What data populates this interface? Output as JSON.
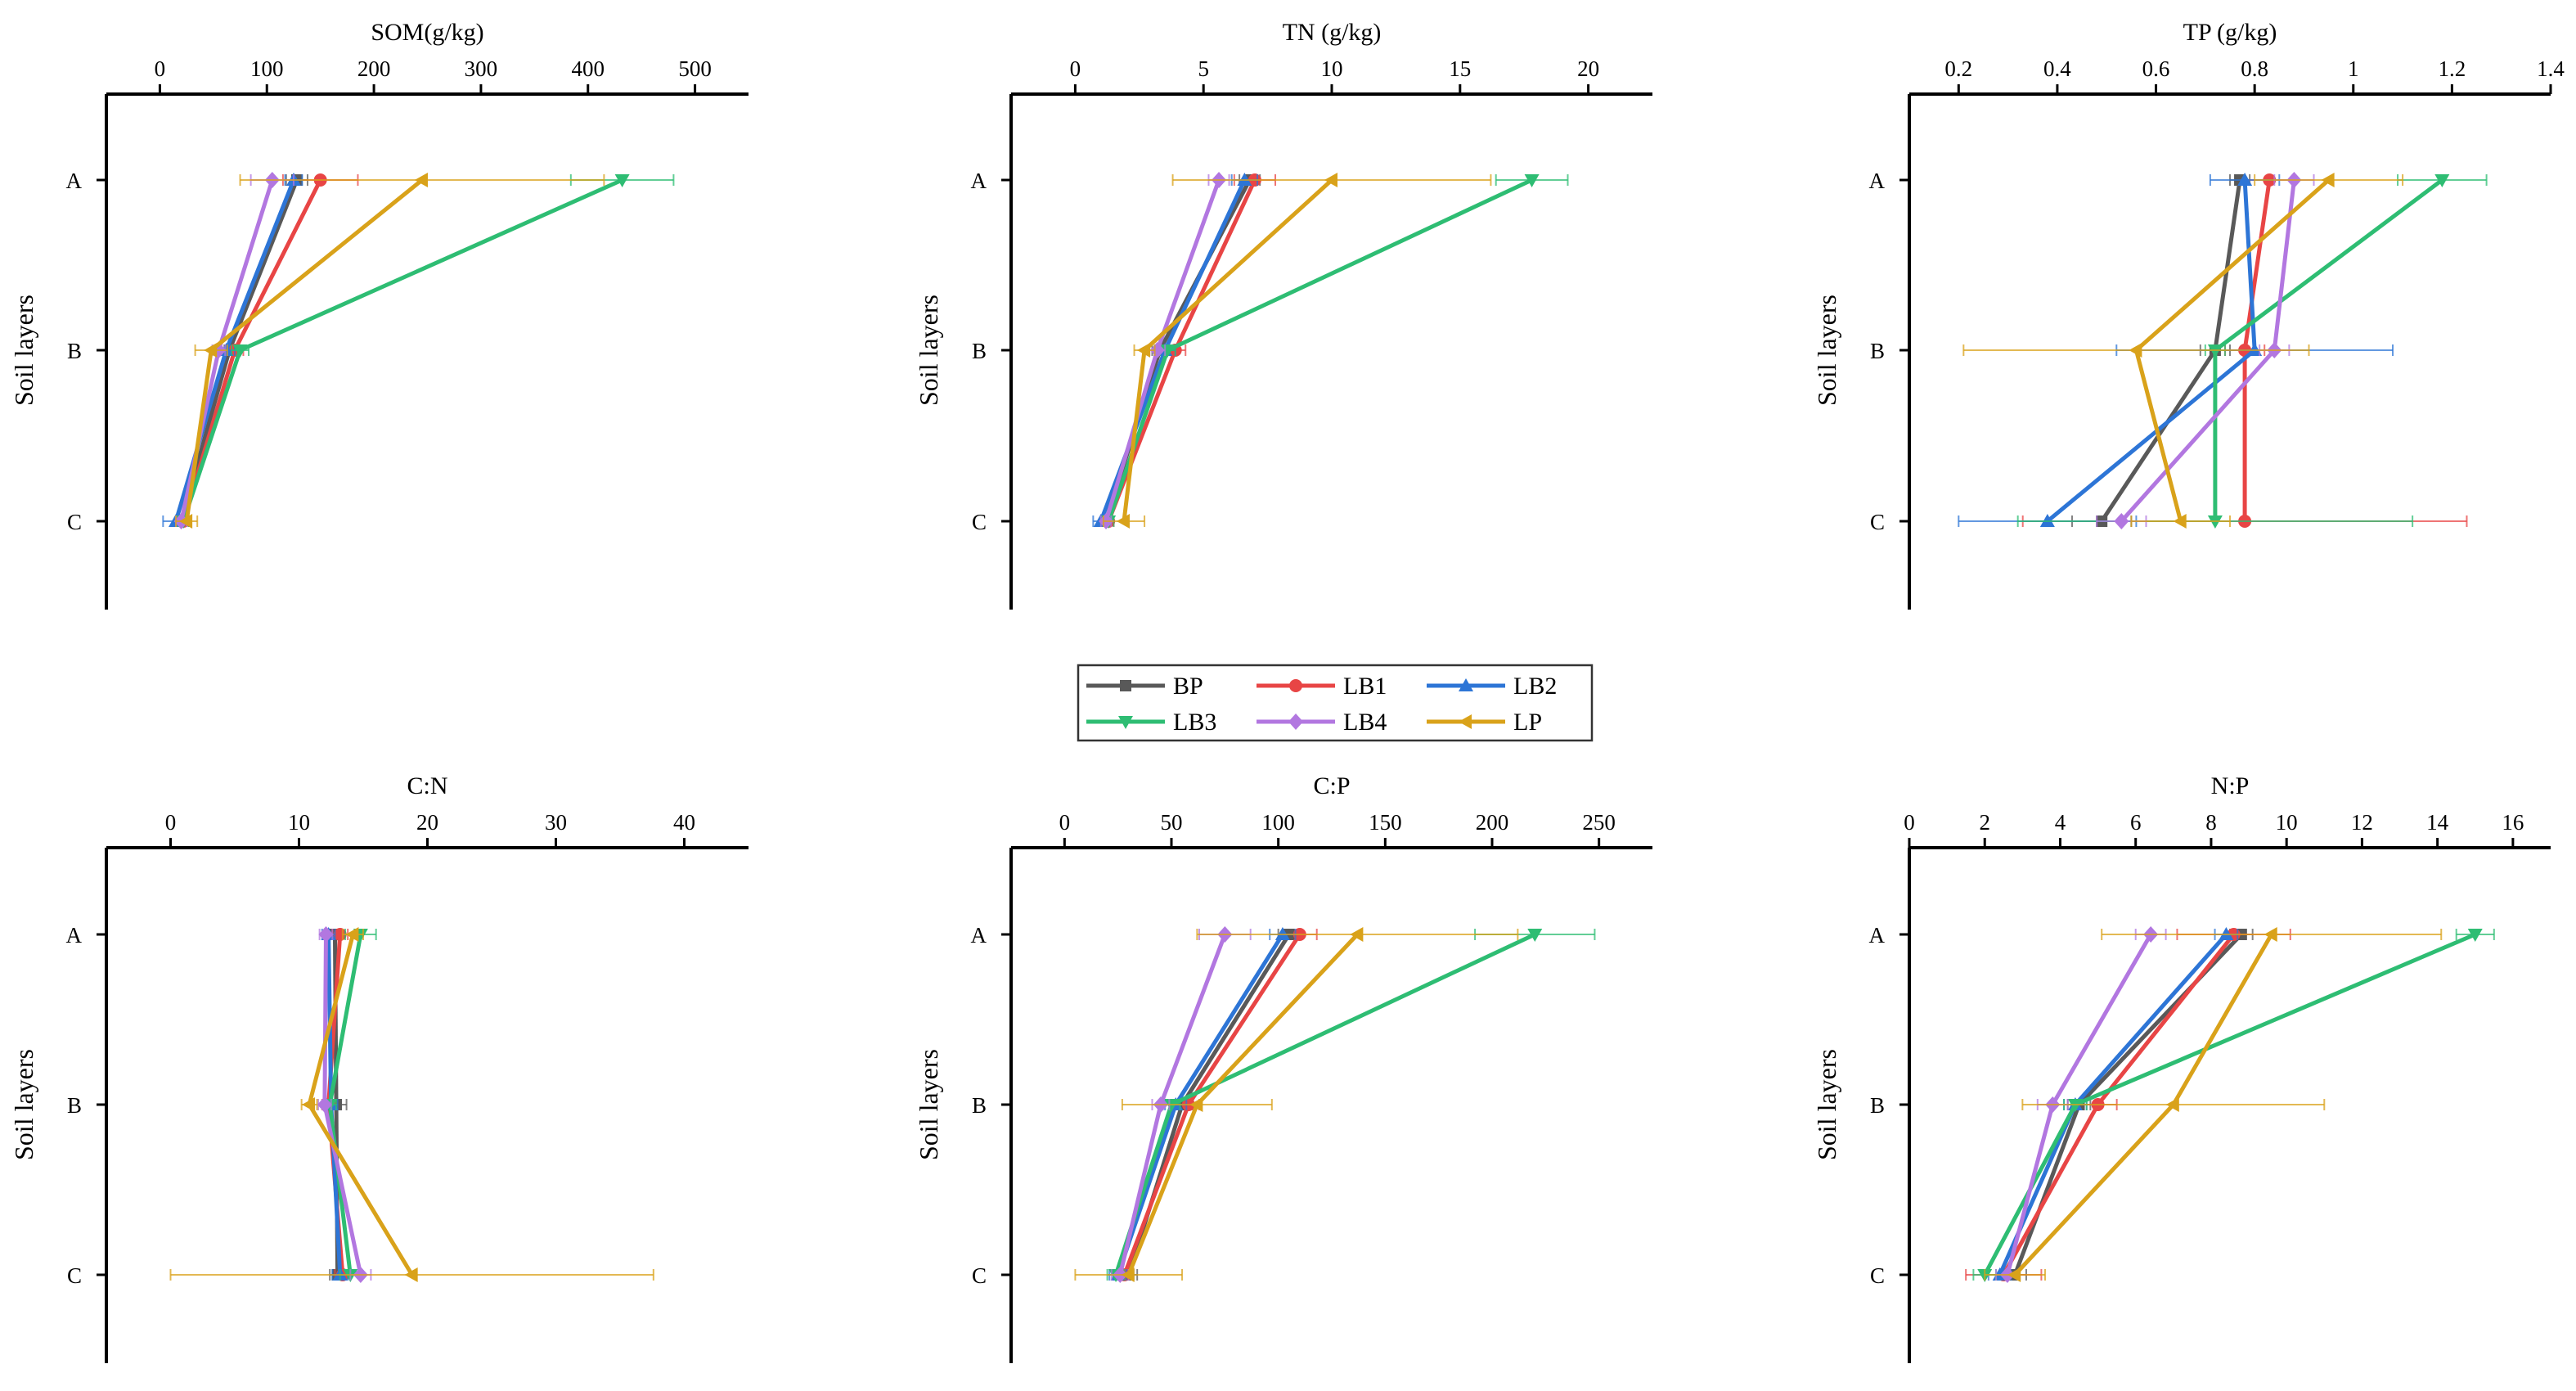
{
  "figure": {
    "legend": {
      "placement": "center, between the two rows of panels",
      "entries": [
        "BP",
        "LB1",
        "LB2",
        "LB3",
        "LB4",
        "LP"
      ]
    }
  },
  "series_styles": [
    {
      "name": "BP",
      "color": "#595959",
      "marker": "square"
    },
    {
      "name": "LB1",
      "color": "#e84545",
      "marker": "circle"
    },
    {
      "name": "LB2",
      "color": "#2d75d6",
      "marker": "triangle-up"
    },
    {
      "name": "LB3",
      "color": "#2ebd73",
      "marker": "triangle-down"
    },
    {
      "name": "LB4",
      "color": "#b277e0",
      "marker": "diamond"
    },
    {
      "name": "LP",
      "color": "#d9a21a",
      "marker": "triangle-left"
    }
  ],
  "chart_data": [
    {
      "type": "line",
      "title": "SOM(g/kg)",
      "xlabel": "SOM(g/kg)",
      "ylabel": "Soil layers",
      "categories": [
        "A",
        "B",
        "C"
      ],
      "xlim": [
        -50,
        550
      ],
      "xticks": [
        0,
        100,
        200,
        300,
        400,
        500
      ],
      "grid": false,
      "series": [
        {
          "name": "BP",
          "values": [
            128,
            65,
            20
          ],
          "errors": [
            10,
            10,
            5
          ]
        },
        {
          "name": "LB1",
          "values": [
            150,
            70,
            22
          ],
          "errors": [
            35,
            8,
            5
          ]
        },
        {
          "name": "LB2",
          "values": [
            125,
            62,
            15
          ],
          "errors": [
            8,
            8,
            12
          ]
        },
        {
          "name": "LB3",
          "values": [
            432,
            75,
            22
          ],
          "errors": [
            48,
            8,
            5
          ]
        },
        {
          "name": "LB4",
          "values": [
            105,
            55,
            20
          ],
          "errors": [
            20,
            6,
            5
          ]
        },
        {
          "name": "LP",
          "values": [
            245,
            48,
            25
          ],
          "errors": [
            170,
            15,
            10
          ]
        }
      ]
    },
    {
      "type": "line",
      "title": "TN (g/kg)",
      "xlabel": "TN (g/kg)",
      "ylabel": "Soil layers",
      "categories": [
        "A",
        "B",
        "C"
      ],
      "xlim": [
        -2.5,
        22.5
      ],
      "xticks": [
        0,
        5,
        10,
        15,
        20
      ],
      "grid": false,
      "series": [
        {
          "name": "BP",
          "values": [
            6.8,
            3.3,
            1.2
          ],
          "errors": [
            0.4,
            0.3,
            0.2
          ]
        },
        {
          "name": "LB1",
          "values": [
            7.0,
            3.9,
            1.3
          ],
          "errors": [
            0.8,
            0.4,
            0.2
          ]
        },
        {
          "name": "LB2",
          "values": [
            6.6,
            3.5,
            1.0
          ],
          "errors": [
            0.5,
            0.4,
            0.3
          ]
        },
        {
          "name": "LB3",
          "values": [
            17.8,
            3.6,
            1.3
          ],
          "errors": [
            1.4,
            0.3,
            0.2
          ]
        },
        {
          "name": "LB4",
          "values": [
            5.6,
            3.2,
            1.2
          ],
          "errors": [
            0.4,
            0.3,
            0.2
          ]
        },
        {
          "name": "LP",
          "values": [
            10.0,
            2.7,
            1.9
          ],
          "errors": [
            6.2,
            0.4,
            0.8
          ]
        }
      ]
    },
    {
      "type": "line",
      "title": "TP (g/kg)",
      "xlabel": "TP (g/kg)",
      "ylabel": "Soil layers",
      "categories": [
        "A",
        "B",
        "C"
      ],
      "xlim": [
        0.1,
        1.4
      ],
      "xticks": [
        0.2,
        0.4,
        0.6,
        0.8,
        1.0,
        1.2,
        1.4
      ],
      "grid": false,
      "series": [
        {
          "name": "BP",
          "values": [
            0.77,
            0.72,
            0.49
          ],
          "errors": [
            0.02,
            0.03,
            0.06
          ]
        },
        {
          "name": "LB1",
          "values": [
            0.83,
            0.78,
            0.78
          ],
          "errors": [
            0.05,
            0.04,
            0.45
          ]
        },
        {
          "name": "LB2",
          "values": [
            0.78,
            0.8,
            0.38
          ],
          "errors": [
            0.07,
            0.28,
            0.18
          ]
        },
        {
          "name": "LB3",
          "values": [
            1.18,
            0.72,
            0.72
          ],
          "errors": [
            0.09,
            0.02,
            0.4
          ]
        },
        {
          "name": "LB4",
          "values": [
            0.88,
            0.84,
            0.53
          ],
          "errors": [
            0.04,
            0.03,
            0.05
          ]
        },
        {
          "name": "LP",
          "values": [
            0.95,
            0.56,
            0.65
          ],
          "errors": [
            0.15,
            0.35,
            0.1
          ]
        }
      ]
    },
    {
      "type": "line",
      "title": "C:N",
      "xlabel": "C:N",
      "ylabel": "Soil layers",
      "categories": [
        "A",
        "B",
        "C"
      ],
      "xlim": [
        -5,
        45
      ],
      "xticks": [
        0,
        10,
        20,
        30,
        40
      ],
      "grid": false,
      "series": [
        {
          "name": "BP",
          "values": [
            12.8,
            12.9,
            13.0
          ],
          "errors": [
            0.5,
            0.8,
            0.6
          ]
        },
        {
          "name": "LB1",
          "values": [
            13.2,
            12.3,
            13.4
          ],
          "errors": [
            0.6,
            0.5,
            0.6
          ]
        },
        {
          "name": "LB2",
          "values": [
            12.3,
            12.5,
            13.2
          ],
          "errors": [
            0.5,
            0.5,
            0.6
          ]
        },
        {
          "name": "LB3",
          "values": [
            14.8,
            12.4,
            14.0
          ],
          "errors": [
            1.2,
            0.5,
            0.8
          ]
        },
        {
          "name": "LB4",
          "values": [
            12.1,
            12.0,
            14.8
          ],
          "errors": [
            0.5,
            0.5,
            0.8
          ]
        },
        {
          "name": "LP",
          "values": [
            14.2,
            10.8,
            18.8
          ],
          "errors": [
            0.8,
            0.6,
            18.8
          ]
        }
      ]
    },
    {
      "type": "line",
      "title": "C:P",
      "xlabel": "C:P",
      "ylabel": "Soil layers",
      "categories": [
        "A",
        "B",
        "C"
      ],
      "xlim": [
        -25,
        275
      ],
      "xticks": [
        0,
        50,
        100,
        150,
        200,
        250
      ],
      "grid": false,
      "series": [
        {
          "name": "BP",
          "values": [
            105,
            55,
            30
          ],
          "errors": [
            5,
            5,
            4
          ]
        },
        {
          "name": "LB1",
          "values": [
            110,
            58,
            28
          ],
          "errors": [
            8,
            5,
            4
          ]
        },
        {
          "name": "LB2",
          "values": [
            102,
            52,
            25
          ],
          "errors": [
            6,
            5,
            4
          ]
        },
        {
          "name": "LB3",
          "values": [
            220,
            50,
            24
          ],
          "errors": [
            28,
            4,
            4
          ]
        },
        {
          "name": "LB4",
          "values": [
            75,
            45,
            26
          ],
          "errors": [
            12,
            4,
            4
          ]
        },
        {
          "name": "LP",
          "values": [
            137,
            62,
            30
          ],
          "errors": [
            75,
            35,
            25
          ]
        }
      ]
    },
    {
      "type": "line",
      "title": "N:P",
      "xlabel": "N:P",
      "ylabel": "Soil layers",
      "categories": [
        "A",
        "B",
        "C"
      ],
      "xlim": [
        0,
        17
      ],
      "xticks": [
        0,
        2,
        4,
        6,
        8,
        10,
        12,
        14,
        16
      ],
      "grid": false,
      "series": [
        {
          "name": "BP",
          "values": [
            8.8,
            4.5,
            2.8
          ],
          "errors": [
            0.3,
            0.3,
            0.3
          ]
        },
        {
          "name": "LB1",
          "values": [
            8.6,
            5.0,
            2.5
          ],
          "errors": [
            1.5,
            0.5,
            1.0
          ]
        },
        {
          "name": "LB2",
          "values": [
            8.4,
            4.4,
            2.4
          ],
          "errors": [
            0.3,
            0.3,
            0.3
          ]
        },
        {
          "name": "LB3",
          "values": [
            15.0,
            4.4,
            2.0
          ],
          "errors": [
            0.5,
            0.3,
            0.3
          ]
        },
        {
          "name": "LB4",
          "values": [
            6.4,
            3.8,
            2.6
          ],
          "errors": [
            0.4,
            0.4,
            0.3
          ]
        },
        {
          "name": "LP",
          "values": [
            9.6,
            7.0,
            2.8
          ],
          "errors": [
            4.5,
            4.0,
            0.8
          ]
        }
      ]
    }
  ]
}
